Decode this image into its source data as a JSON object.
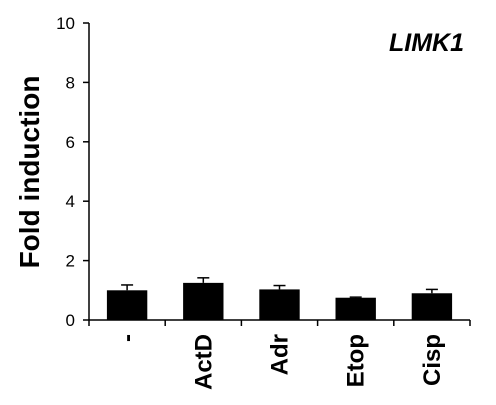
{
  "chart_data": {
    "type": "bar",
    "title": "LIMK1",
    "ylabel": "Fold induction",
    "xlabel": "",
    "categories": [
      "-",
      "ActD",
      "Adr",
      "Etop",
      "Cisp"
    ],
    "values": [
      1.0,
      1.25,
      1.03,
      0.75,
      0.9
    ],
    "errors": [
      0.18,
      0.17,
      0.13,
      0.02,
      0.13
    ],
    "ylim": [
      0,
      10
    ],
    "yticks": [
      "0",
      "2",
      "4",
      "6",
      "8",
      "10"
    ],
    "grid": false,
    "bar_color": "#000000"
  }
}
